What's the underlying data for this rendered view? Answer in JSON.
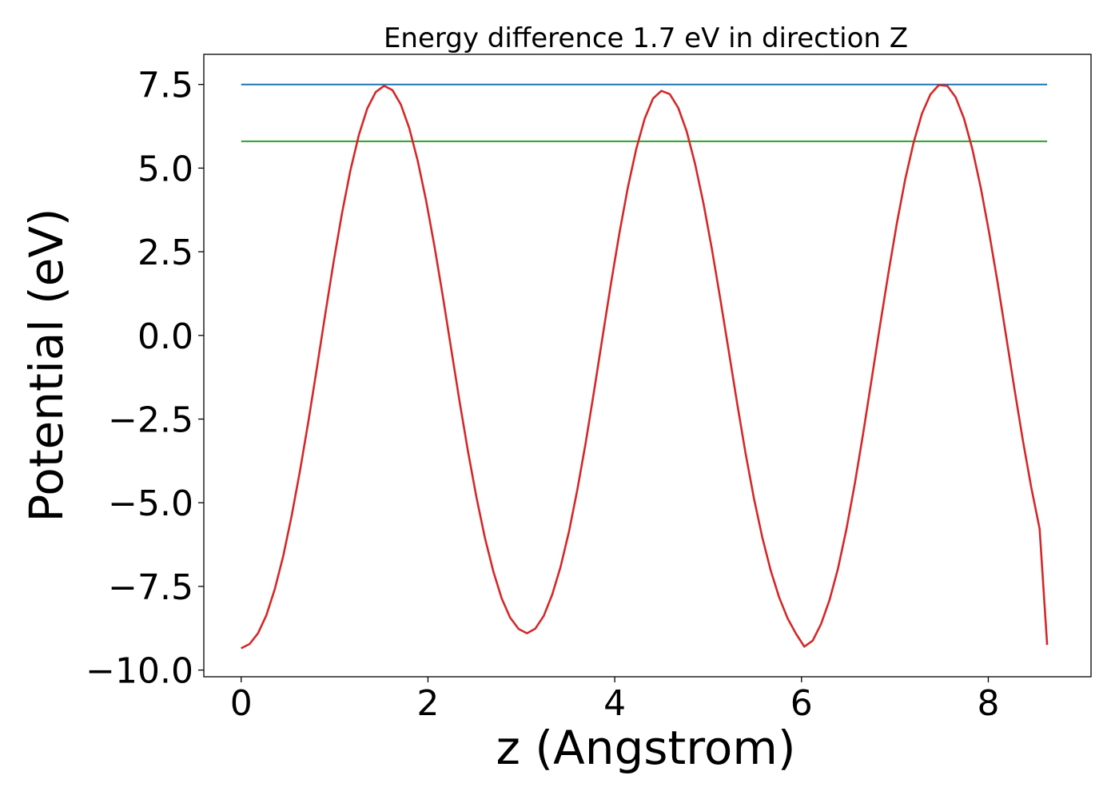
{
  "chart_data": {
    "type": "line",
    "title": "Energy difference 1.7 eV in direction Z",
    "xlabel": "z (Angstrom)",
    "ylabel": "Potential (eV)",
    "xlim": [
      -0.4,
      9.1
    ],
    "ylim": [
      -10.2,
      8.4
    ],
    "grid": false,
    "legend": "none",
    "xticks": [
      {
        "value": 0,
        "label": "0"
      },
      {
        "value": 2,
        "label": "2"
      },
      {
        "value": 4,
        "label": "4"
      },
      {
        "value": 6,
        "label": "6"
      },
      {
        "value": 8,
        "label": "8"
      }
    ],
    "yticks": [
      {
        "value": 7.5,
        "label": "7.5"
      },
      {
        "value": 5.0,
        "label": "5.0"
      },
      {
        "value": 2.5,
        "label": "2.5"
      },
      {
        "value": 0.0,
        "label": "0.0"
      },
      {
        "value": -2.5,
        "label": "−2.5"
      },
      {
        "value": -5.0,
        "label": "−5.0"
      },
      {
        "value": -7.5,
        "label": "−7.5"
      },
      {
        "value": -10.0,
        "label": "−10.0"
      }
    ],
    "series": [
      {
        "color": "#1f77b4",
        "x": [
          0.0,
          8.63
        ],
        "y": [
          7.5,
          7.5
        ]
      },
      {
        "color": "#2ca02c",
        "x": [
          0.0,
          8.63
        ],
        "y": [
          5.8,
          5.8
        ]
      },
      {
        "color": "#d62728",
        "x": [
          0.0,
          0.09,
          0.18,
          0.27,
          0.36,
          0.45,
          0.54,
          0.63,
          0.72,
          0.81,
          0.9,
          0.99,
          1.08,
          1.17,
          1.26,
          1.35,
          1.44,
          1.53,
          1.62,
          1.71,
          1.8,
          1.89,
          1.98,
          2.07,
          2.16,
          2.25,
          2.34,
          2.43,
          2.52,
          2.61,
          2.7,
          2.79,
          2.88,
          2.97,
          3.06,
          3.15,
          3.24,
          3.33,
          3.42,
          3.51,
          3.6,
          3.69,
          3.78,
          3.87,
          3.96,
          4.05,
          4.14,
          4.23,
          4.32,
          4.41,
          4.5,
          4.59,
          4.68,
          4.77,
          4.86,
          4.95,
          5.04,
          5.13,
          5.22,
          5.31,
          5.4,
          5.49,
          5.58,
          5.67,
          5.76,
          5.85,
          5.94,
          6.03,
          6.12,
          6.21,
          6.3,
          6.39,
          6.48,
          6.57,
          6.66,
          6.75,
          6.84,
          6.93,
          7.02,
          7.11,
          7.2,
          7.29,
          7.38,
          7.47,
          7.56,
          7.65,
          7.74,
          7.83,
          7.92,
          8.01,
          8.1,
          8.19,
          8.28,
          8.37,
          8.46,
          8.55,
          8.63
        ],
        "y": [
          -9.35,
          -9.22,
          -8.9,
          -8.36,
          -7.58,
          -6.6,
          -5.4,
          -4.05,
          -2.56,
          -0.98,
          0.63,
          2.2,
          3.65,
          4.93,
          5.99,
          6.78,
          7.27,
          7.46,
          7.33,
          6.9,
          6.19,
          5.22,
          4.03,
          2.66,
          1.16,
          -0.42,
          -1.99,
          -3.49,
          -4.85,
          -6.05,
          -7.05,
          -7.86,
          -8.43,
          -8.77,
          -8.9,
          -8.76,
          -8.38,
          -7.75,
          -6.92,
          -5.86,
          -4.6,
          -3.19,
          -1.64,
          -0.04,
          1.55,
          3.05,
          4.42,
          5.57,
          6.47,
          7.08,
          7.31,
          7.21,
          6.8,
          6.1,
          5.13,
          3.95,
          2.59,
          1.1,
          -0.46,
          -2.02,
          -3.51,
          -4.86,
          -6.03,
          -7.02,
          -7.82,
          -8.45,
          -8.91,
          -9.3,
          -9.12,
          -8.62,
          -7.91,
          -6.97,
          -5.8,
          -4.44,
          -2.93,
          -1.33,
          0.28,
          1.86,
          3.34,
          4.66,
          5.76,
          6.63,
          7.2,
          7.48,
          7.46,
          7.12,
          6.48,
          5.56,
          4.41,
          3.06,
          1.57,
          -0.01,
          -1.6,
          -3.13,
          -4.54,
          -5.78,
          -9.25
        ]
      }
    ]
  }
}
